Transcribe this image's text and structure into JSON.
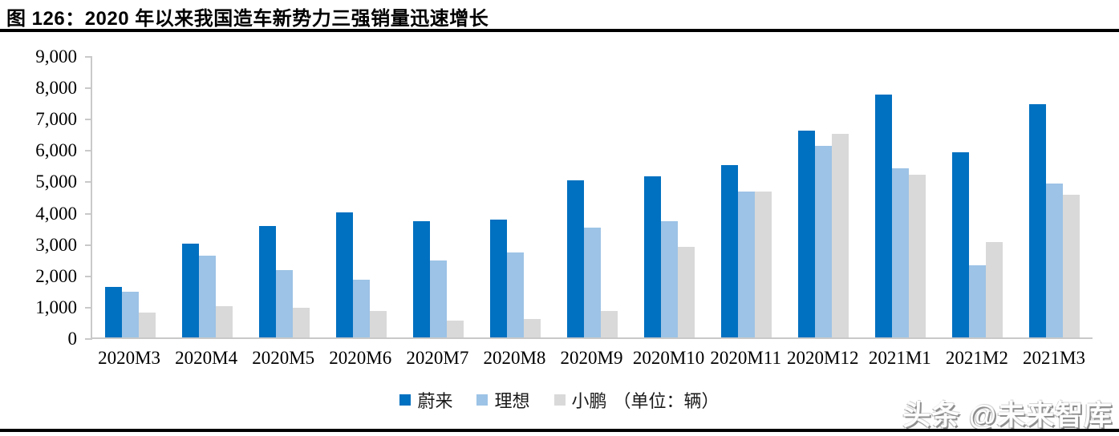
{
  "figure": {
    "watermark": "头条 @未来智库"
  },
  "chart_data": {
    "type": "bar",
    "title": "图 126：2020 年以来我国造车新势力三强销量迅速增长",
    "categories": [
      "2020M3",
      "2020M4",
      "2020M5",
      "2020M6",
      "2020M7",
      "2020M8",
      "2020M9",
      "2020M10",
      "2020M11",
      "2020M12",
      "2021M1",
      "2021M2",
      "2021M3"
    ],
    "series": [
      {
        "name": "蔚来",
        "color": "#0070C0",
        "values": [
          1600,
          3000,
          3550,
          4000,
          3700,
          3750,
          5000,
          5150,
          5500,
          6600,
          7750,
          5900,
          7450
        ]
      },
      {
        "name": "理想",
        "color": "#9DC3E6",
        "values": [
          1450,
          2600,
          2150,
          1850,
          2450,
          2700,
          3500,
          3700,
          4650,
          6100,
          5400,
          2300,
          4900
        ]
      },
      {
        "name": "小鹏",
        "color": "#D9D9D9",
        "values": [
          800,
          1000,
          950,
          850,
          550,
          600,
          850,
          2900,
          4650,
          6500,
          5200,
          3050,
          4550
        ]
      }
    ],
    "xlabel": "",
    "ylabel": "",
    "ylim": [
      0,
      9000
    ],
    "ytick_step": 1000,
    "y_axis_labels": [
      "9,000",
      "8,000",
      "7,000",
      "6,000",
      "5,000",
      "4,000",
      "3,000",
      "2,000",
      "1,000",
      "0"
    ],
    "grid": false,
    "legend_position": "bottom",
    "unit_note": "（单位：辆）",
    "axis_color": "#c9c9c9",
    "text_color": "#000000"
  }
}
